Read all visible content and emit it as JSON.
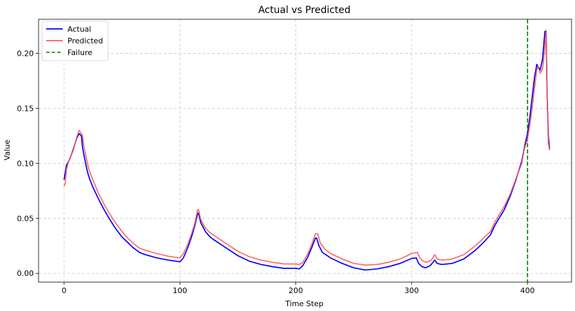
{
  "chart_data": {
    "type": "line",
    "title": "Actual vs Predicted",
    "xlabel": "Time Step",
    "ylabel": "Value",
    "xlim": [
      -22,
      438
    ],
    "ylim": [
      -0.008,
      0.231
    ],
    "xticks": [
      0,
      100,
      200,
      300,
      400
    ],
    "yticks": [
      0.0,
      0.05,
      0.1,
      0.15,
      0.2
    ],
    "ytick_labels": [
      "0.00",
      "0.05",
      "0.10",
      "0.15",
      "0.20"
    ],
    "grid": true,
    "legend_position": "top-left",
    "series": [
      {
        "name": "Actual",
        "color": "#0000ff",
        "points": [
          [
            0,
            0.085
          ],
          [
            2,
            0.098
          ],
          [
            5,
            0.104
          ],
          [
            8,
            0.113
          ],
          [
            11,
            0.123
          ],
          [
            13,
            0.127
          ],
          [
            15,
            0.125
          ],
          [
            16,
            0.114
          ],
          [
            18,
            0.103
          ],
          [
            20,
            0.093
          ],
          [
            22,
            0.086
          ],
          [
            25,
            0.078
          ],
          [
            30,
            0.067
          ],
          [
            35,
            0.057
          ],
          [
            40,
            0.048
          ],
          [
            45,
            0.04
          ],
          [
            50,
            0.033
          ],
          [
            55,
            0.028
          ],
          [
            60,
            0.023
          ],
          [
            65,
            0.019
          ],
          [
            70,
            0.017
          ],
          [
            80,
            0.014
          ],
          [
            90,
            0.012
          ],
          [
            100,
            0.0105
          ],
          [
            103,
            0.014
          ],
          [
            107,
            0.024
          ],
          [
            110,
            0.033
          ],
          [
            113,
            0.044
          ],
          [
            115,
            0.053
          ],
          [
            116,
            0.055
          ],
          [
            118,
            0.046
          ],
          [
            122,
            0.038
          ],
          [
            126,
            0.033
          ],
          [
            130,
            0.03
          ],
          [
            140,
            0.023
          ],
          [
            150,
            0.016
          ],
          [
            160,
            0.011
          ],
          [
            170,
            0.008
          ],
          [
            180,
            0.006
          ],
          [
            190,
            0.0045
          ],
          [
            200,
            0.0045
          ],
          [
            203,
            0.004
          ],
          [
            206,
            0.007
          ],
          [
            210,
            0.014
          ],
          [
            214,
            0.024
          ],
          [
            217,
            0.032
          ],
          [
            218,
            0.032
          ],
          [
            220,
            0.025
          ],
          [
            223,
            0.019
          ],
          [
            230,
            0.014
          ],
          [
            240,
            0.009
          ],
          [
            250,
            0.005
          ],
          [
            260,
            0.003
          ],
          [
            270,
            0.004
          ],
          [
            280,
            0.006
          ],
          [
            290,
            0.009
          ],
          [
            300,
            0.0135
          ],
          [
            304,
            0.014
          ],
          [
            306,
            0.009
          ],
          [
            309,
            0.006
          ],
          [
            312,
            0.005
          ],
          [
            316,
            0.007
          ],
          [
            320,
            0.012
          ],
          [
            322,
            0.009
          ],
          [
            326,
            0.008
          ],
          [
            335,
            0.009
          ],
          [
            345,
            0.013
          ],
          [
            355,
            0.021
          ],
          [
            362,
            0.028
          ],
          [
            368,
            0.035
          ],
          [
            372,
            0.044
          ],
          [
            380,
            0.058
          ],
          [
            385,
            0.07
          ],
          [
            390,
            0.085
          ],
          [
            395,
            0.102
          ],
          [
            398,
            0.118
          ],
          [
            400,
            0.127
          ],
          [
            402,
            0.142
          ],
          [
            404,
            0.16
          ],
          [
            406,
            0.178
          ],
          [
            408,
            0.19
          ],
          [
            409,
            0.188
          ],
          [
            411,
            0.185
          ],
          [
            413,
            0.195
          ],
          [
            415,
            0.22
          ],
          [
            416,
            0.22
          ],
          [
            417,
            0.16
          ],
          [
            418,
            0.125
          ],
          [
            419,
            0.113
          ]
        ]
      },
      {
        "name": "Predicted",
        "color": "#ff5a5a",
        "points": [
          [
            0,
            0.079
          ],
          [
            1,
            0.082
          ],
          [
            2,
            0.094
          ],
          [
            4,
            0.102
          ],
          [
            8,
            0.112
          ],
          [
            11,
            0.124
          ],
          [
            13,
            0.13
          ],
          [
            15,
            0.127
          ],
          [
            16,
            0.125
          ],
          [
            17,
            0.116
          ],
          [
            19,
            0.106
          ],
          [
            21,
            0.096
          ],
          [
            23,
            0.09
          ],
          [
            26,
            0.082
          ],
          [
            30,
            0.072
          ],
          [
            35,
            0.062
          ],
          [
            40,
            0.053
          ],
          [
            45,
            0.045
          ],
          [
            50,
            0.038
          ],
          [
            55,
            0.032
          ],
          [
            60,
            0.027
          ],
          [
            65,
            0.023
          ],
          [
            70,
            0.021
          ],
          [
            80,
            0.018
          ],
          [
            90,
            0.0155
          ],
          [
            100,
            0.014
          ],
          [
            103,
            0.018
          ],
          [
            107,
            0.027
          ],
          [
            110,
            0.036
          ],
          [
            113,
            0.046
          ],
          [
            115,
            0.057
          ],
          [
            116,
            0.058
          ],
          [
            118,
            0.049
          ],
          [
            122,
            0.041
          ],
          [
            126,
            0.037
          ],
          [
            130,
            0.034
          ],
          [
            140,
            0.027
          ],
          [
            150,
            0.02
          ],
          [
            160,
            0.015
          ],
          [
            170,
            0.012
          ],
          [
            180,
            0.01
          ],
          [
            190,
            0.0085
          ],
          [
            200,
            0.0085
          ],
          [
            203,
            0.008
          ],
          [
            206,
            0.01
          ],
          [
            210,
            0.017
          ],
          [
            214,
            0.027
          ],
          [
            217,
            0.036
          ],
          [
            219,
            0.036
          ],
          [
            221,
            0.028
          ],
          [
            225,
            0.022
          ],
          [
            230,
            0.018
          ],
          [
            240,
            0.013
          ],
          [
            250,
            0.009
          ],
          [
            260,
            0.0075
          ],
          [
            270,
            0.008
          ],
          [
            280,
            0.01
          ],
          [
            290,
            0.013
          ],
          [
            300,
            0.018
          ],
          [
            305,
            0.019
          ],
          [
            307,
            0.014
          ],
          [
            310,
            0.011
          ],
          [
            313,
            0.01
          ],
          [
            317,
            0.012
          ],
          [
            320,
            0.017
          ],
          [
            322,
            0.013
          ],
          [
            326,
            0.012
          ],
          [
            335,
            0.013
          ],
          [
            345,
            0.017
          ],
          [
            355,
            0.025
          ],
          [
            362,
            0.032
          ],
          [
            368,
            0.038
          ],
          [
            372,
            0.047
          ],
          [
            380,
            0.061
          ],
          [
            385,
            0.072
          ],
          [
            390,
            0.086
          ],
          [
            395,
            0.1
          ],
          [
            397,
            0.112
          ],
          [
            400,
            0.122
          ],
          [
            402,
            0.135
          ],
          [
            404,
            0.15
          ],
          [
            406,
            0.168
          ],
          [
            408,
            0.185
          ],
          [
            409,
            0.188
          ],
          [
            411,
            0.182
          ],
          [
            413,
            0.186
          ],
          [
            415,
            0.205
          ],
          [
            416,
            0.221
          ],
          [
            417,
            0.16
          ],
          [
            418,
            0.118
          ],
          [
            419,
            0.112
          ]
        ]
      }
    ],
    "vlines": [
      {
        "name": "Failure",
        "x": 400,
        "color": "#008000",
        "style": "dashed"
      }
    ]
  }
}
